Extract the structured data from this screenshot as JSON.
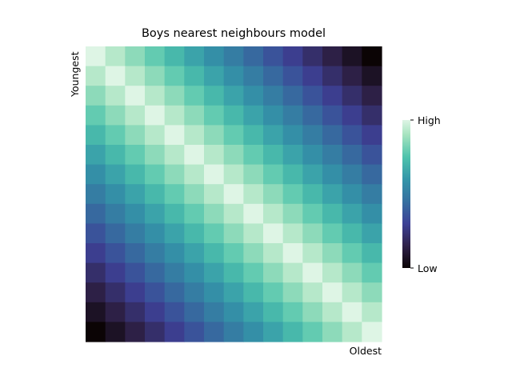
{
  "chart_data": {
    "type": "heatmap",
    "title": "Boys nearest neighbours model",
    "ylabel": "Youngest",
    "xlabel": "Oldest",
    "n": 15,
    "colormap": "mako",
    "colorbar": {
      "high_label": "High",
      "low_label": "Low"
    },
    "grid": false,
    "values_description": "similarity = 1 - |i - j| / 14 (diagonal highest)"
  }
}
